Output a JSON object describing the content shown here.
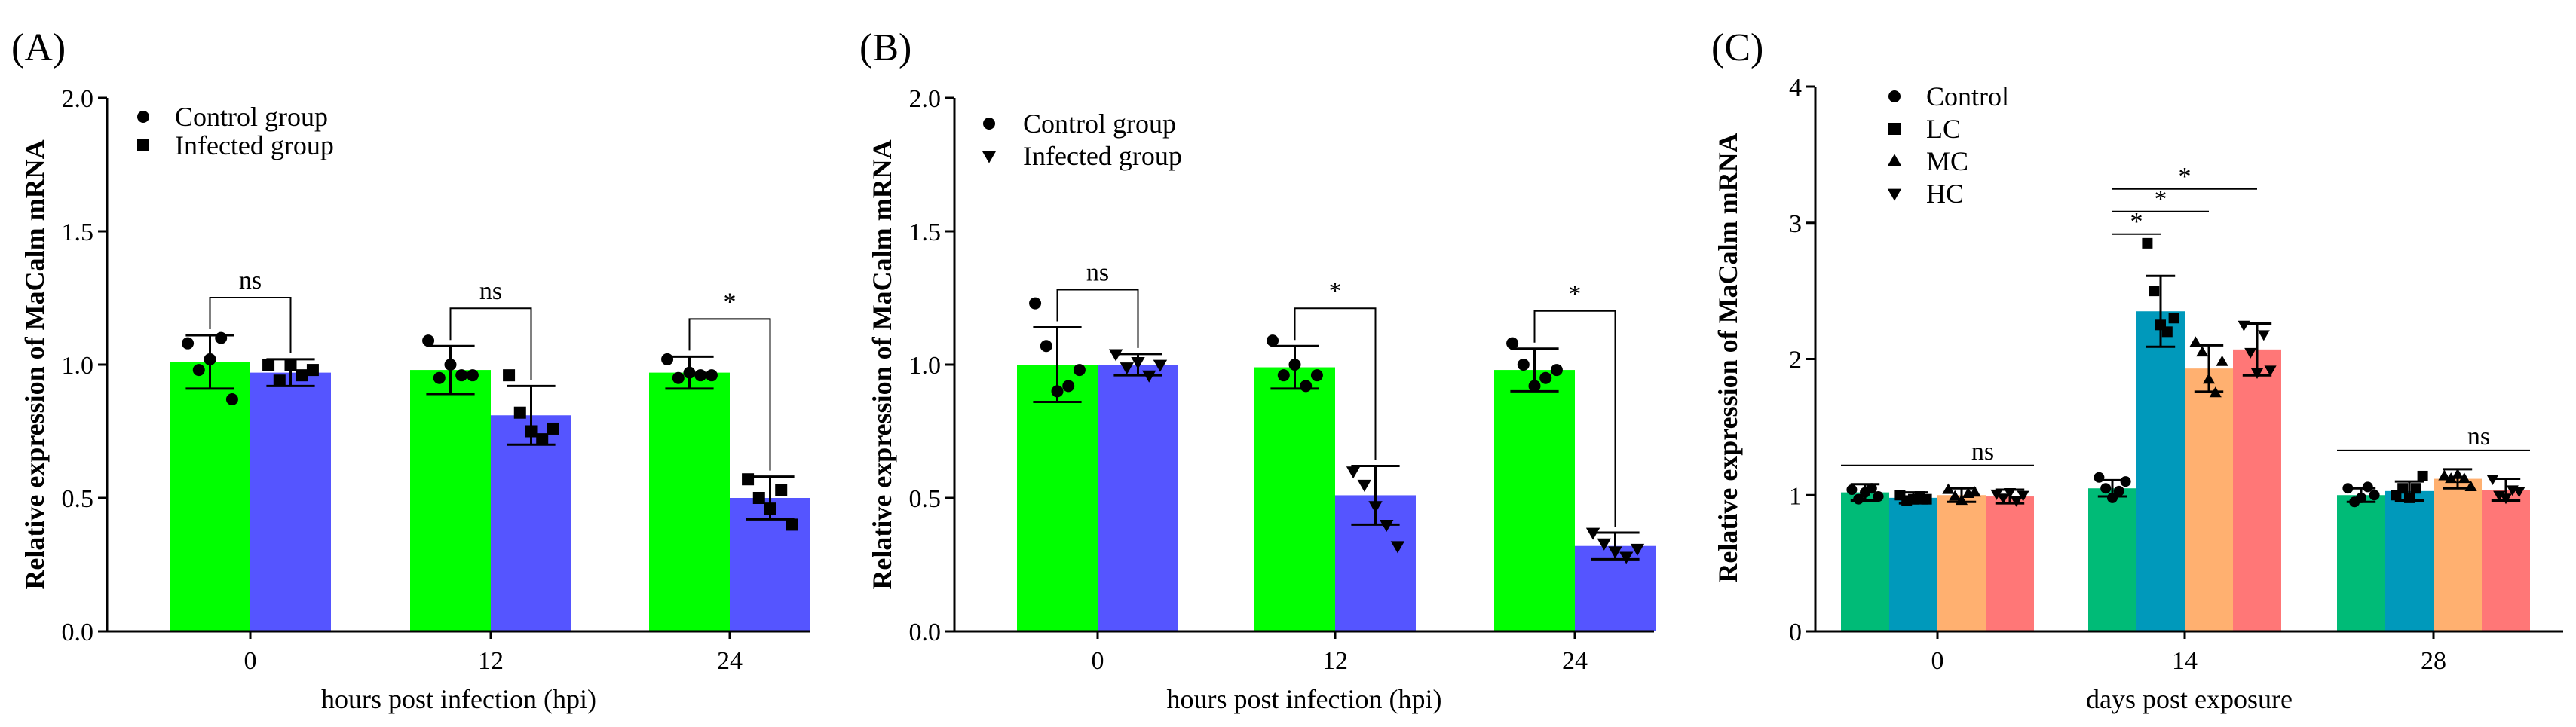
{
  "chart_data": [
    {
      "type": "bar",
      "panel_label": "(A)",
      "ylabel": "Relative expression of MaCalm mRNA",
      "xlabel": "hours post infection (hpi)",
      "ylim": [
        0,
        2.0
      ],
      "yticks": [
        "0.0",
        "0.5",
        "1.0",
        "1.5",
        "2.0"
      ],
      "ytick_values": [
        0,
        0.5,
        1.0,
        1.5,
        2.0
      ],
      "categories": [
        "0",
        "12",
        "24"
      ],
      "legend_position": "top-left",
      "series": [
        {
          "name": "Control group",
          "color": "#00ff00",
          "marker": "circle",
          "values": [
            1.01,
            0.98,
            0.97
          ],
          "errors": [
            0.1,
            0.09,
            0.06
          ],
          "points": [
            [
              1.08,
              0.98,
              1.02,
              1.1,
              0.87
            ],
            [
              1.09,
              0.95,
              1.0,
              0.96,
              0.96
            ],
            [
              1.02,
              0.95,
              0.97,
              0.96,
              0.96
            ]
          ]
        },
        {
          "name": "Infected group",
          "color": "#5555ff",
          "marker": "square",
          "values": [
            0.97,
            0.81,
            0.5
          ],
          "errors": [
            0.05,
            0.11,
            0.08
          ],
          "points": [
            [
              1.0,
              0.94,
              1.0,
              0.96,
              0.98
            ],
            [
              0.96,
              0.82,
              0.75,
              0.72,
              0.76
            ],
            [
              0.57,
              0.5,
              0.46,
              0.53,
              0.4
            ]
          ]
        }
      ],
      "significance": [
        {
          "category": "0",
          "label": "ns"
        },
        {
          "category": "12",
          "label": "ns"
        },
        {
          "category": "24",
          "label": "*"
        }
      ]
    },
    {
      "type": "bar",
      "panel_label": "(B)",
      "ylabel": "Relative expression of MaCalm mRNA",
      "xlabel": "hours post infection (hpi)",
      "ylim": [
        0,
        2.0
      ],
      "yticks": [
        "0.0",
        "0.5",
        "1.0",
        "1.5",
        "2.0"
      ],
      "ytick_values": [
        0,
        0.5,
        1.0,
        1.5,
        2.0
      ],
      "categories": [
        "0",
        "12",
        "24"
      ],
      "legend_position": "top-left",
      "series": [
        {
          "name": "Control group",
          "color": "#00ff00",
          "marker": "circle",
          "values": [
            1.0,
            0.99,
            0.98
          ],
          "errors": [
            0.14,
            0.08,
            0.08
          ],
          "points": [
            [
              1.23,
              1.07,
              0.9,
              0.92,
              0.98
            ],
            [
              1.09,
              0.96,
              1.0,
              0.92,
              0.96
            ],
            [
              1.08,
              1.0,
              0.92,
              0.95,
              0.98
            ]
          ]
        },
        {
          "name": "Infected group",
          "color": "#5555ff",
          "marker": "tri-down",
          "values": [
            1.0,
            0.51,
            0.32
          ],
          "errors": [
            0.04,
            0.11,
            0.05
          ],
          "points": [
            [
              1.04,
              0.99,
              1.01,
              0.96,
              1.0
            ],
            [
              0.6,
              0.55,
              0.47,
              0.4,
              0.32
            ],
            [
              0.37,
              0.33,
              0.3,
              0.28,
              0.31
            ]
          ]
        }
      ],
      "significance": [
        {
          "category": "0",
          "label": "ns"
        },
        {
          "category": "12",
          "label": "*"
        },
        {
          "category": "24",
          "label": "*"
        }
      ]
    },
    {
      "type": "bar",
      "panel_label": "(C)",
      "ylabel": "Relative expression of MaCalm mRNA",
      "xlabel": "days post exposure",
      "ylim": [
        0,
        4
      ],
      "yticks": [
        "0",
        "1",
        "2",
        "3",
        "4"
      ],
      "ytick_values": [
        0,
        1,
        2,
        3,
        4
      ],
      "categories": [
        "0",
        "14",
        "28"
      ],
      "legend_position": "top-left",
      "series": [
        {
          "name": "Control",
          "color": "#00bb77",
          "marker": "circle",
          "values": [
            1.02,
            1.05,
            1.0
          ],
          "errors": [
            0.06,
            0.06,
            0.05
          ],
          "points": [
            [
              1.04,
              0.97,
              1.02,
              1.05,
              0.99
            ],
            [
              1.13,
              1.05,
              0.98,
              1.03,
              1.1
            ],
            [
              1.05,
              0.95,
              0.98,
              1.06,
              1.0
            ]
          ]
        },
        {
          "name": "LC",
          "color": "#0099bb",
          "marker": "square",
          "values": [
            0.98,
            2.35,
            1.03
          ],
          "errors": [
            0.04,
            0.26,
            0.07
          ],
          "points": [
            [
              1.0,
              0.96,
              0.97,
              0.99,
              0.97
            ],
            [
              2.85,
              2.5,
              2.25,
              2.2,
              2.3
            ],
            [
              1.0,
              1.05,
              0.98,
              1.05,
              1.14
            ]
          ]
        },
        {
          "name": "MC",
          "color": "#ffb070",
          "marker": "triangle",
          "values": [
            1.0,
            1.93,
            1.12
          ],
          "errors": [
            0.05,
            0.17,
            0.07
          ],
          "points": [
            [
              1.04,
              0.99,
              0.96,
              1.01,
              1.02
            ],
            [
              2.12,
              2.05,
              1.85,
              1.75,
              1.98
            ],
            [
              1.14,
              1.12,
              1.15,
              1.12,
              1.06
            ]
          ]
        },
        {
          "name": "HC",
          "color": "#ff7777",
          "marker": "tri-down",
          "values": [
            0.99,
            2.07,
            1.04
          ],
          "errors": [
            0.05,
            0.19,
            0.08
          ],
          "points": [
            [
              1.01,
              0.98,
              1.02,
              0.96,
              1.0
            ],
            [
              2.25,
              2.05,
              1.9,
              2.18,
              1.92
            ],
            [
              1.12,
              1.0,
              0.98,
              1.04,
              1.03
            ]
          ]
        }
      ],
      "significance": [
        {
          "type": "group",
          "category": "0",
          "label": "ns"
        },
        {
          "type": "pair",
          "category": "14",
          "from": "Control",
          "to": "LC",
          "label": "*"
        },
        {
          "type": "pair",
          "category": "14",
          "from": "Control",
          "to": "MC",
          "label": "*"
        },
        {
          "type": "pair",
          "category": "14",
          "from": "Control",
          "to": "HC",
          "label": "*"
        },
        {
          "type": "group",
          "category": "28",
          "label": "ns"
        }
      ]
    }
  ]
}
